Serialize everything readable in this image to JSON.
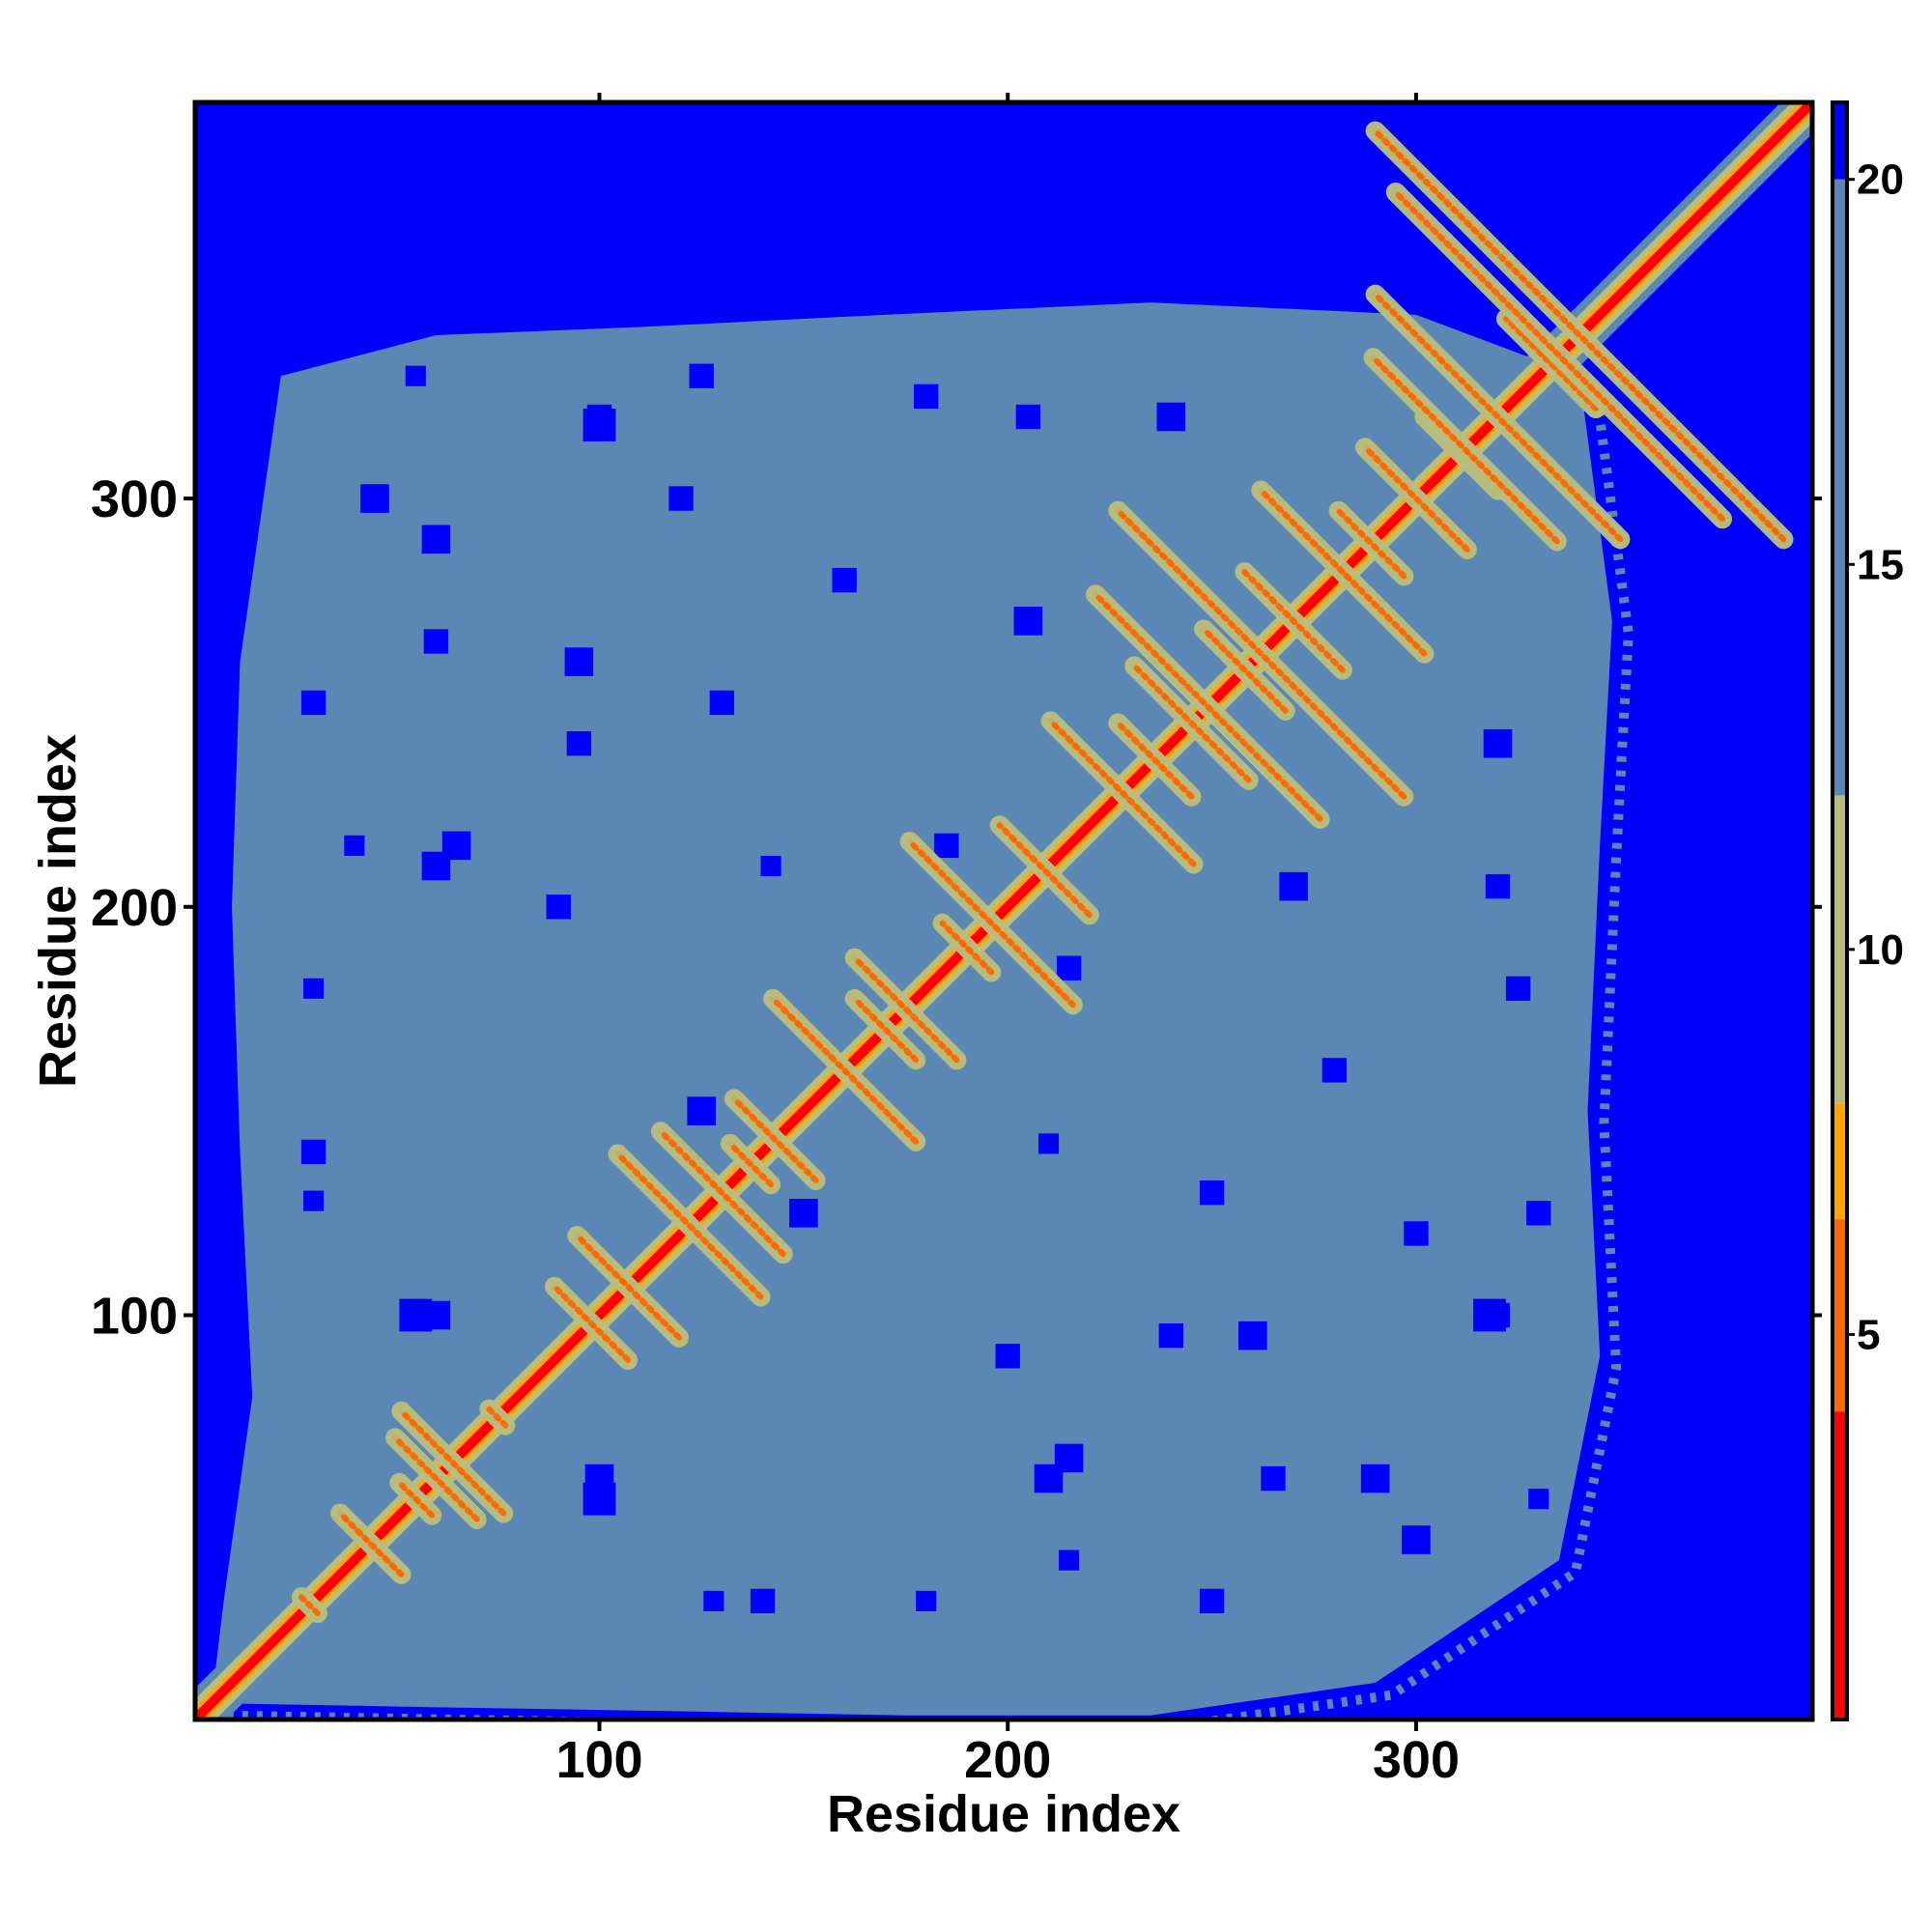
{
  "chart_data": {
    "type": "heatmap",
    "title": "",
    "xlabel": "Residue index",
    "ylabel": "Residue index",
    "x_range": [
      1,
      397
    ],
    "y_range": [
      1,
      397
    ],
    "x_ticks": [
      100,
      200,
      300
    ],
    "y_ticks": [
      100,
      200,
      300
    ],
    "x_tick_labels": [
      "100",
      "200",
      "300"
    ],
    "y_tick_labels": [
      "100",
      "200",
      "300"
    ],
    "value_range": [
      0,
      21
    ],
    "colorbar": {
      "ticks": [
        5,
        10,
        15,
        20
      ],
      "tick_labels": [
        "5",
        "10",
        "15",
        "20"
      ],
      "position": "right",
      "bands": [
        {
          "from": 0,
          "to": 4,
          "color": "#ff0000"
        },
        {
          "from": 4,
          "to": 6.5,
          "color": "#ff6a00"
        },
        {
          "from": 6.5,
          "to": 8,
          "color": "#ffa500"
        },
        {
          "from": 8,
          "to": 12,
          "color": "#b9be7e"
        },
        {
          "from": 12,
          "to": 20,
          "color": "#5a87b4"
        },
        {
          "from": 20,
          "to": 21,
          "color": "#0000ff"
        }
      ]
    },
    "background_value": 21,
    "cluster_hull": [
      [
        10,
        10
      ],
      [
        40,
        4
      ],
      [
        110,
        4
      ],
      [
        150,
        8
      ],
      [
        210,
        2
      ],
      [
        260,
        0
      ],
      [
        320,
        8
      ],
      [
        345,
        120
      ],
      [
        350,
        230
      ],
      [
        345,
        330
      ],
      [
        300,
        340
      ],
      [
        220,
        348
      ],
      [
        150,
        342
      ],
      [
        90,
        338
      ],
      [
        40,
        335
      ],
      [
        12,
        255
      ],
      [
        12,
        160
      ],
      [
        18,
        60
      ]
    ],
    "empty_patches": [
      [
        100,
        318,
        8
      ],
      [
        120,
        300,
        6
      ],
      [
        60,
        290,
        7
      ],
      [
        180,
        325,
        6
      ],
      [
        240,
        320,
        7
      ],
      [
        300,
        300,
        6
      ],
      [
        65,
        215,
        7
      ],
      [
        95,
        240,
        6
      ],
      [
        40,
        215,
        5
      ],
      [
        185,
        215,
        6
      ],
      [
        270,
        205,
        7
      ],
      [
        320,
        205,
        6
      ],
      [
        280,
        160,
        6
      ],
      [
        30,
        180,
        5
      ],
      [
        125,
        150,
        7
      ],
      [
        210,
        142,
        5
      ],
      [
        250,
        130,
        6
      ],
      [
        330,
        125,
        6
      ],
      [
        30,
        128,
        5
      ],
      [
        60,
        100,
        7
      ],
      [
        200,
        90,
        6
      ],
      [
        260,
        95,
        7
      ],
      [
        320,
        100,
        6
      ],
      [
        100,
        55,
        8
      ],
      [
        210,
        60,
        7
      ],
      [
        265,
        60,
        6
      ],
      [
        300,
        45,
        7
      ],
      [
        250,
        30,
        6
      ],
      [
        330,
        55,
        5
      ],
      [
        140,
        30,
        6
      ]
    ],
    "contacts": [
      {
        "a": 29,
        "b": 4
      },
      {
        "a": 44,
        "b": 15
      },
      {
        "a": 55,
        "b": 8
      },
      {
        "a": 60,
        "b": 20
      },
      {
        "a": 64,
        "b": 25
      },
      {
        "a": 75,
        "b": 4
      },
      {
        "a": 98,
        "b": 18
      },
      {
        "a": 107,
        "b": 25
      },
      {
        "a": 122,
        "b": 35
      },
      {
        "a": 130,
        "b": 30
      },
      {
        "a": 137,
        "b": 10
      },
      {
        "a": 143,
        "b": 20
      },
      {
        "a": 160,
        "b": 35
      },
      {
        "a": 170,
        "b": 15
      },
      {
        "a": 175,
        "b": 25
      },
      {
        "a": 190,
        "b": 12
      },
      {
        "a": 196,
        "b": 40
      },
      {
        "a": 209,
        "b": 22
      },
      {
        "a": 228,
        "b": 35
      },
      {
        "a": 236,
        "b": 18
      },
      {
        "a": 245,
        "b": 28
      },
      {
        "a": 249,
        "b": 55
      },
      {
        "a": 258,
        "b": 20
      },
      {
        "a": 262,
        "b": 70
      },
      {
        "a": 270,
        "b": 24
      },
      {
        "a": 282,
        "b": 40
      },
      {
        "a": 289,
        "b": 16
      },
      {
        "a": 300,
        "b": 25
      },
      {
        "a": 311,
        "b": 18
      },
      {
        "a": 312,
        "b": 45
      },
      {
        "a": 320,
        "b": 60
      },
      {
        "a": 333,
        "b": 22
      },
      {
        "a": 335,
        "b": 80
      },
      {
        "a": 340,
        "b": 100
      }
    ]
  }
}
